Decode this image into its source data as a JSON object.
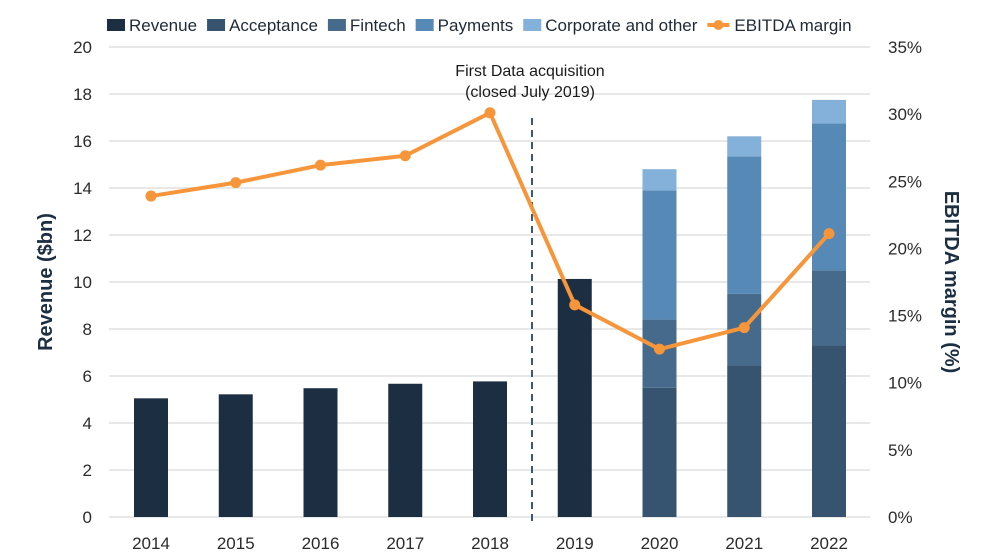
{
  "chart_data": {
    "type": "bar",
    "categories": [
      "2014",
      "2015",
      "2016",
      "2017",
      "2018",
      "2019",
      "2020",
      "2021",
      "2022"
    ],
    "series": [
      {
        "name": "Revenue",
        "axis": "left",
        "color": "#1b2e42",
        "values": [
          5.05,
          5.22,
          5.48,
          5.67,
          5.77,
          10.13,
          null,
          null,
          null
        ]
      },
      {
        "name": "Acceptance",
        "axis": "left",
        "color": "#36546f",
        "values": [
          null,
          null,
          null,
          null,
          null,
          null,
          5.5,
          6.45,
          7.3
        ]
      },
      {
        "name": "Fintech",
        "axis": "left",
        "color": "#456a8c",
        "values": [
          null,
          null,
          null,
          null,
          null,
          null,
          2.9,
          3.05,
          3.2
        ]
      },
      {
        "name": "Payments",
        "axis": "left",
        "color": "#5789b6",
        "values": [
          null,
          null,
          null,
          null,
          null,
          null,
          5.5,
          5.85,
          6.25
        ]
      },
      {
        "name": "Corporate and other",
        "axis": "left",
        "color": "#84b1da",
        "values": [
          null,
          null,
          null,
          null,
          null,
          null,
          0.9,
          0.85,
          1.0
        ]
      },
      {
        "name": "EBITDA margin",
        "axis": "right",
        "type": "line",
        "color": "#f7953a",
        "values": [
          23.9,
          24.9,
          26.2,
          26.9,
          30.1,
          15.8,
          12.5,
          14.1,
          21.1
        ]
      }
    ],
    "stacked": true,
    "ylabel": "Revenue ($bn)",
    "ylim": [
      0,
      20
    ],
    "yticks": [
      "0",
      "2",
      "4",
      "6",
      "8",
      "10",
      "12",
      "14",
      "16",
      "18",
      "20"
    ],
    "y2label": "EBITDA margin (%)",
    "y2lim": [
      0,
      35
    ],
    "y2ticks": [
      "0%",
      "5%",
      "10%",
      "15%",
      "20%",
      "25%",
      "30%",
      "35%"
    ],
    "grid": true,
    "legend_position": "top",
    "annotation": {
      "lines": [
        "First Data acquisition",
        "(closed July 2019)"
      ],
      "between": [
        "2018",
        "2019"
      ]
    }
  }
}
